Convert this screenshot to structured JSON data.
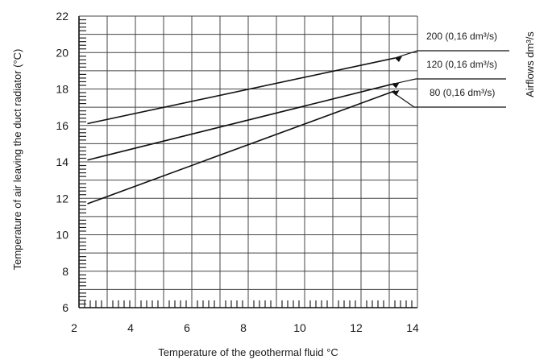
{
  "chart_data": {
    "type": "line",
    "title": "",
    "xlabel": "Temperature of the geothermal fluid °C",
    "ylabel": "Temperature of air leaving the duct radiator (°C)",
    "secondary_label": "Airflows dm³/s",
    "xlim": [
      2,
      14
    ],
    "ylim": [
      6,
      22
    ],
    "x_ticks": [
      2,
      4,
      6,
      8,
      10,
      12,
      14
    ],
    "y_ticks": [
      6,
      8,
      10,
      12,
      14,
      16,
      18,
      20,
      22
    ],
    "grid": true,
    "series": [
      {
        "name": "200 (0,16 dm³/s)",
        "x": [
          2.3,
          13.2
        ],
        "y": [
          16.1,
          19.7
        ],
        "label_at": 13.2
      },
      {
        "name": "120 (0,16 dm³/s)",
        "x": [
          2.3,
          13.2
        ],
        "y": [
          14.1,
          18.3
        ],
        "label_at": 13.1
      },
      {
        "name": "80 (0,16 dm³/s)",
        "x": [
          2.3,
          13.2
        ],
        "y": [
          11.7,
          17.9
        ],
        "label_at": 13.1
      }
    ]
  }
}
